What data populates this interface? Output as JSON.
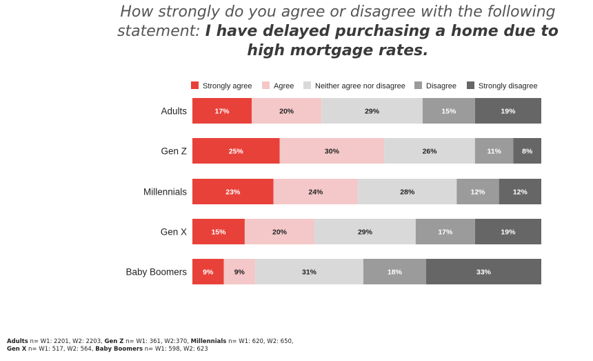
{
  "chart_data": {
    "type": "bar",
    "orientation": "horizontal-stacked",
    "title_part1": "How strongly do you agree or disagree with the following statement",
    "title_colon": ":",
    "title_part2": "I have delayed purchasing a home due to high mortgage rates.",
    "categories": [
      "Adults",
      "Gen Z",
      "Millennials",
      "Gen X",
      "Baby Boomers"
    ],
    "series": [
      {
        "name": "Strongly agree",
        "color": "#e8413a",
        "label_color": "#ffffff",
        "values": [
          17,
          25,
          23,
          15,
          9
        ]
      },
      {
        "name": "Agree",
        "color": "#f4c8c8",
        "label_color": "#222222",
        "values": [
          20,
          30,
          24,
          20,
          9
        ]
      },
      {
        "name": "Neither agree nor disagree",
        "color": "#d9d9d9",
        "label_color": "#222222",
        "values": [
          29,
          26,
          28,
          29,
          31
        ]
      },
      {
        "name": "Disagree",
        "color": "#9b9b9b",
        "label_color": "#ffffff",
        "values": [
          15,
          11,
          12,
          17,
          18
        ]
      },
      {
        "name": "Strongly disagree",
        "color": "#666666",
        "label_color": "#ffffff",
        "values": [
          19,
          8,
          12,
          19,
          33
        ]
      }
    ],
    "value_suffix": "%",
    "legend_position": "top",
    "grid": false
  },
  "footnote": {
    "line1": [
      {
        "bold": "Adults",
        "text": " n= W1: 2201, W2: 2203, "
      },
      {
        "bold": "Gen Z",
        "text": " n= W1:  361, W2:370, "
      },
      {
        "bold": "Millennials",
        "text": " n= W1: 620, W2: 650,"
      }
    ],
    "line2": [
      {
        "bold": "Gen X",
        "text": " n= W1: 517, W2: 564, "
      },
      {
        "bold": "Baby Boomers",
        "text": " n= W1: 598, W2: 623"
      }
    ]
  }
}
